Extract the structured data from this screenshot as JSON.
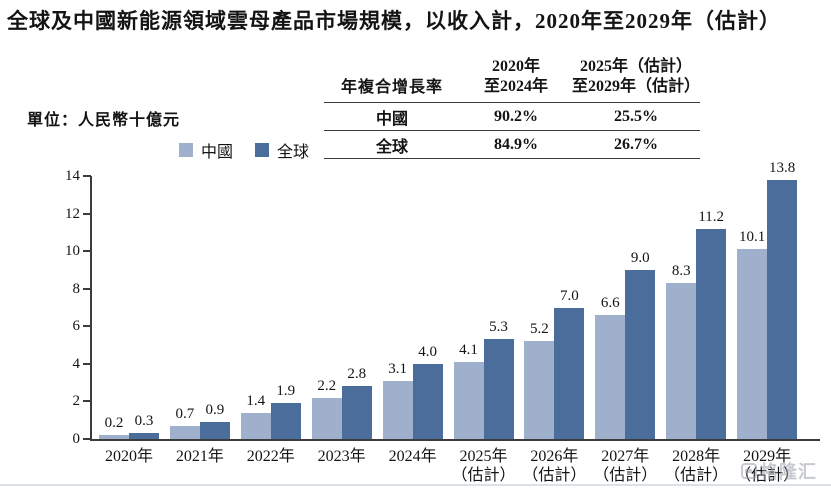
{
  "title": "全球及中國新能源領域雲母產品市場規模，以收入計，2020年至2029年（估計）",
  "unit_label": "單位：人民幣十億元",
  "cagr_table": {
    "row_header": "年複合增長率",
    "columns": [
      {
        "line1": "2020年",
        "line2": "至2024年"
      },
      {
        "line1": "2025年（估計）",
        "line2": "至2029年（估計）"
      }
    ],
    "rows": [
      {
        "label": "中國",
        "values": [
          "90.2%",
          "25.5%"
        ]
      },
      {
        "label": "全球",
        "values": [
          "84.9%",
          "26.7%"
        ]
      }
    ]
  },
  "watermark": {
    "text": "格隆汇",
    "icon": "gelonghui-logo"
  },
  "chart_data": {
    "type": "bar",
    "title": "全球及中國新能源領域雲母產品市場規模，以收入計，2020年至2029年（估計）",
    "unit": "人民幣十億元",
    "categories": [
      {
        "label": "2020年",
        "sub": ""
      },
      {
        "label": "2021年",
        "sub": ""
      },
      {
        "label": "2022年",
        "sub": ""
      },
      {
        "label": "2023年",
        "sub": ""
      },
      {
        "label": "2024年",
        "sub": ""
      },
      {
        "label": "2025年",
        "sub": "（估計）"
      },
      {
        "label": "2026年",
        "sub": "（估計）"
      },
      {
        "label": "2027年",
        "sub": "（估計）"
      },
      {
        "label": "2028年",
        "sub": "（估計）"
      },
      {
        "label": "2029年",
        "sub": "（估計）"
      }
    ],
    "series": [
      {
        "name": "中國",
        "color": "#9FB0CD",
        "values": [
          0.2,
          0.7,
          1.4,
          2.2,
          3.1,
          4.1,
          5.2,
          6.6,
          8.3,
          10.1
        ]
      },
      {
        "name": "全球",
        "color": "#4A6D9C",
        "values": [
          0.3,
          0.9,
          1.9,
          2.8,
          4.0,
          5.3,
          7.0,
          9.0,
          11.2,
          13.8
        ]
      }
    ],
    "ylim": [
      0,
      14
    ],
    "ytick_step": 2,
    "grid": false,
    "legend_position": "top-left",
    "value_labels": true,
    "axis_color": "#3c3c3c"
  }
}
